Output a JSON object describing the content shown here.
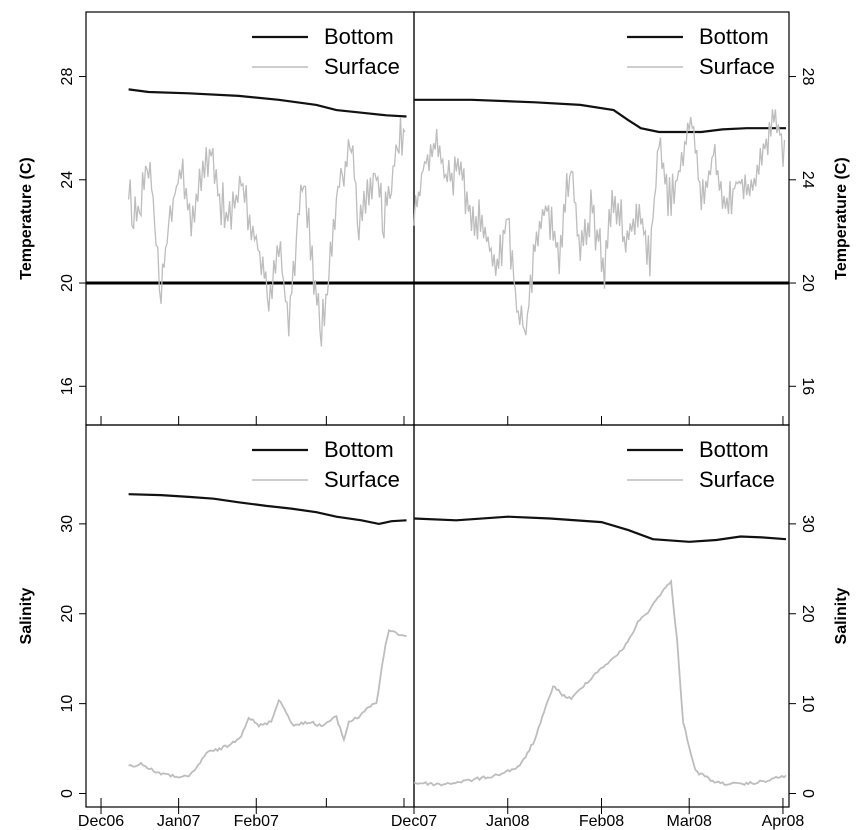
{
  "colors": {
    "bottom": "#111111",
    "surface": "#bdbdbd",
    "reference_line": "#000000"
  },
  "chart_data": [
    {
      "id": "temp-2007",
      "type": "line",
      "ylabel": "Temperature (C)",
      "yticks": [
        "16",
        "20",
        "24",
        "28"
      ],
      "ylim": [
        14.5,
        30.5
      ],
      "xlim": [
        "2006-11-25",
        "2007-04-05"
      ],
      "xticks": [],
      "reference_line": {
        "y": 20
      },
      "legend": {
        "position": "top-right",
        "entries": [
          "Bottom",
          "Surface"
        ]
      },
      "series": [
        {
          "name": "Bottom",
          "kind": "bottom",
          "points": [
            [
              "2006-12-12",
              27.5
            ],
            [
              "2006-12-20",
              27.4
            ],
            [
              "2007-01-05",
              27.35
            ],
            [
              "2007-01-25",
              27.25
            ],
            [
              "2007-02-10",
              27.1
            ],
            [
              "2007-02-25",
              26.9
            ],
            [
              "2007-03-05",
              26.7
            ],
            [
              "2007-03-15",
              26.6
            ],
            [
              "2007-03-25",
              26.5
            ],
            [
              "2007-04-02",
              26.45
            ]
          ]
        },
        {
          "name": "Surface",
          "kind": "surface",
          "noisy": true,
          "points": [
            [
              "2006-12-12",
              23.5
            ],
            [
              "2006-12-14",
              22.5
            ],
            [
              "2006-12-17",
              23.0
            ],
            [
              "2006-12-20",
              25.0
            ],
            [
              "2006-12-23",
              22.0
            ],
            [
              "2006-12-25",
              19.5
            ],
            [
              "2006-12-28",
              22.5
            ],
            [
              "2007-01-02",
              24.5
            ],
            [
              "2007-01-06",
              22.5
            ],
            [
              "2007-01-10",
              24.0
            ],
            [
              "2007-01-14",
              25.0
            ],
            [
              "2007-01-18",
              23.0
            ],
            [
              "2007-01-22",
              22.5
            ],
            [
              "2007-01-26",
              24.0
            ],
            [
              "2007-01-30",
              22.0
            ],
            [
              "2007-02-03",
              21.0
            ],
            [
              "2007-02-06",
              19.5
            ],
            [
              "2007-02-10",
              21.5
            ],
            [
              "2007-02-14",
              18.5
            ],
            [
              "2007-02-17",
              22.0
            ],
            [
              "2007-02-20",
              24.0
            ],
            [
              "2007-02-24",
              20.0
            ],
            [
              "2007-02-27",
              18.0
            ],
            [
              "2007-03-02",
              20.5
            ],
            [
              "2007-03-05",
              23.5
            ],
            [
              "2007-03-08",
              24.5
            ],
            [
              "2007-03-11",
              25.5
            ],
            [
              "2007-03-14",
              22.0
            ],
            [
              "2007-03-18",
              23.5
            ],
            [
              "2007-03-21",
              24.5
            ],
            [
              "2007-03-24",
              22.5
            ],
            [
              "2007-03-27",
              24.0
            ],
            [
              "2007-03-30",
              25.5
            ],
            [
              "2007-04-02",
              26.0
            ]
          ]
        }
      ]
    },
    {
      "id": "temp-2008",
      "type": "line",
      "ylabel": "Temperature (C)",
      "yticks": [
        "16",
        "20",
        "24",
        "28"
      ],
      "ylim": [
        14.5,
        30.5
      ],
      "xlim": [
        "2007-12-01",
        "2008-04-03"
      ],
      "xticks": [],
      "reference_line": {
        "y": 20
      },
      "legend": {
        "position": "top-right",
        "entries": [
          "Bottom",
          "Surface"
        ]
      },
      "series": [
        {
          "name": "Bottom",
          "kind": "bottom",
          "points": [
            [
              "2007-12-01",
              27.1
            ],
            [
              "2007-12-20",
              27.1
            ],
            [
              "2008-01-10",
              27.0
            ],
            [
              "2008-01-25",
              26.9
            ],
            [
              "2008-02-05",
              26.7
            ],
            [
              "2008-02-10",
              26.3
            ],
            [
              "2008-02-14",
              26.0
            ],
            [
              "2008-02-20",
              25.85
            ],
            [
              "2008-03-05",
              25.85
            ],
            [
              "2008-03-12",
              25.95
            ],
            [
              "2008-03-20",
              26.0
            ],
            [
              "2008-04-02",
              26.0
            ]
          ]
        },
        {
          "name": "Surface",
          "kind": "surface",
          "noisy": true,
          "points": [
            [
              "2007-12-01",
              22.5
            ],
            [
              "2007-12-04",
              24.5
            ],
            [
              "2007-12-08",
              25.5
            ],
            [
              "2007-12-12",
              24.0
            ],
            [
              "2007-12-16",
              24.5
            ],
            [
              "2007-12-20",
              22.5
            ],
            [
              "2007-12-24",
              22.0
            ],
            [
              "2007-12-28",
              20.5
            ],
            [
              "2008-01-01",
              22.5
            ],
            [
              "2008-01-04",
              19.0
            ],
            [
              "2008-01-07",
              18.0
            ],
            [
              "2008-01-10",
              21.5
            ],
            [
              "2008-01-14",
              23.0
            ],
            [
              "2008-01-18",
              21.0
            ],
            [
              "2008-01-22",
              24.5
            ],
            [
              "2008-01-25",
              21.0
            ],
            [
              "2008-01-29",
              23.0
            ],
            [
              "2008-02-02",
              20.5
            ],
            [
              "2008-02-05",
              23.5
            ],
            [
              "2008-02-09",
              21.5
            ],
            [
              "2008-02-13",
              23.0
            ],
            [
              "2008-02-17",
              21.0
            ],
            [
              "2008-02-20",
              25.5
            ],
            [
              "2008-02-23",
              23.0
            ],
            [
              "2008-02-27",
              24.5
            ],
            [
              "2008-03-02",
              26.5
            ],
            [
              "2008-03-05",
              23.0
            ],
            [
              "2008-03-09",
              25.0
            ],
            [
              "2008-03-13",
              23.0
            ],
            [
              "2008-03-17",
              24.0
            ],
            [
              "2008-03-21",
              23.5
            ],
            [
              "2008-03-25",
              25.0
            ],
            [
              "2008-03-29",
              26.5
            ],
            [
              "2008-04-02",
              25.0
            ]
          ]
        }
      ]
    },
    {
      "id": "sal-2007",
      "type": "line",
      "ylabel": "Salinity",
      "yticks": [
        "0",
        "10",
        "20",
        "30"
      ],
      "ylim": [
        -1.5,
        41
      ],
      "xlim": [
        "2006-11-25",
        "2007-04-05"
      ],
      "xticks": [
        [
          "2006-12-01",
          "Dec06"
        ],
        [
          "2007-01-01",
          "Jan07"
        ],
        [
          "2007-02-01",
          "Feb07"
        ],
        [
          "2007-03-01",
          ""
        ],
        [
          "2007-04-01",
          ""
        ]
      ],
      "legend": {
        "position": "top-right",
        "entries": [
          "Bottom",
          "Surface"
        ]
      },
      "series": [
        {
          "name": "Bottom",
          "kind": "bottom",
          "points": [
            [
              "2006-12-12",
              33.3
            ],
            [
              "2006-12-25",
              33.2
            ],
            [
              "2007-01-05",
              33.0
            ],
            [
              "2007-01-15",
              32.8
            ],
            [
              "2007-01-25",
              32.4
            ],
            [
              "2007-02-05",
              32.0
            ],
            [
              "2007-02-15",
              31.7
            ],
            [
              "2007-02-25",
              31.3
            ],
            [
              "2007-03-05",
              30.8
            ],
            [
              "2007-03-15",
              30.4
            ],
            [
              "2007-03-22",
              30.0
            ],
            [
              "2007-03-27",
              30.3
            ],
            [
              "2007-04-02",
              30.4
            ]
          ]
        },
        {
          "name": "Surface",
          "kind": "surface",
          "points": [
            [
              "2006-12-12",
              3.0
            ],
            [
              "2006-12-17",
              3.3
            ],
            [
              "2006-12-22",
              2.5
            ],
            [
              "2006-12-28",
              2.0
            ],
            [
              "2007-01-05",
              1.8
            ],
            [
              "2007-01-08",
              2.8
            ],
            [
              "2007-01-12",
              4.5
            ],
            [
              "2007-01-18",
              5.0
            ],
            [
              "2007-01-22",
              5.5
            ],
            [
              "2007-01-26",
              6.5
            ],
            [
              "2007-01-29",
              8.5
            ],
            [
              "2007-02-02",
              7.5
            ],
            [
              "2007-02-07",
              8.0
            ],
            [
              "2007-02-10",
              10.5
            ],
            [
              "2007-02-13",
              9.0
            ],
            [
              "2007-02-16",
              7.5
            ],
            [
              "2007-02-22",
              8.0
            ],
            [
              "2007-02-27",
              7.5
            ],
            [
              "2007-03-05",
              8.5
            ],
            [
              "2007-03-08",
              6.0
            ],
            [
              "2007-03-10",
              8.0
            ],
            [
              "2007-03-14",
              8.5
            ],
            [
              "2007-03-17",
              9.5
            ],
            [
              "2007-03-21",
              10.0
            ],
            [
              "2007-03-24",
              15.5
            ],
            [
              "2007-03-26",
              18.3
            ],
            [
              "2007-03-29",
              17.8
            ],
            [
              "2007-04-02",
              17.5
            ]
          ]
        }
      ]
    },
    {
      "id": "sal-2008",
      "type": "line",
      "ylabel": "Salinity",
      "yticks": [
        "0",
        "10",
        "20",
        "30"
      ],
      "ylim": [
        -1.5,
        41
      ],
      "xlim": [
        "2007-12-01",
        "2008-04-03"
      ],
      "xticks": [
        [
          "2007-12-01",
          "Dec07"
        ],
        [
          "2008-01-01",
          "Jan08"
        ],
        [
          "2008-02-01",
          "Feb08"
        ],
        [
          "2008-03-01",
          "Mar08"
        ],
        [
          "2008-04-01",
          "Apr08"
        ]
      ],
      "legend": {
        "position": "top-right",
        "entries": [
          "Bottom",
          "Surface"
        ]
      },
      "series": [
        {
          "name": "Bottom",
          "kind": "bottom",
          "points": [
            [
              "2007-12-01",
              30.6
            ],
            [
              "2007-12-15",
              30.4
            ],
            [
              "2008-01-01",
              30.8
            ],
            [
              "2008-01-15",
              30.6
            ],
            [
              "2008-02-01",
              30.2
            ],
            [
              "2008-02-10",
              29.3
            ],
            [
              "2008-02-18",
              28.3
            ],
            [
              "2008-03-01",
              28.0
            ],
            [
              "2008-03-10",
              28.2
            ],
            [
              "2008-03-18",
              28.6
            ],
            [
              "2008-03-25",
              28.5
            ],
            [
              "2008-04-02",
              28.3
            ]
          ]
        },
        {
          "name": "Surface",
          "kind": "surface",
          "points": [
            [
              "2007-12-01",
              1.2
            ],
            [
              "2007-12-10",
              1.0
            ],
            [
              "2007-12-20",
              1.5
            ],
            [
              "2007-12-28",
              2.0
            ],
            [
              "2008-01-05",
              3.0
            ],
            [
              "2008-01-10",
              6.0
            ],
            [
              "2008-01-13",
              9.0
            ],
            [
              "2008-01-16",
              12.0
            ],
            [
              "2008-01-19",
              11.0
            ],
            [
              "2008-01-22",
              10.5
            ],
            [
              "2008-01-26",
              12.0
            ],
            [
              "2008-02-01",
              14.0
            ],
            [
              "2008-02-05",
              15.0
            ],
            [
              "2008-02-09",
              16.5
            ],
            [
              "2008-02-13",
              19.0
            ],
            [
              "2008-02-17",
              20.5
            ],
            [
              "2008-02-21",
              22.5
            ],
            [
              "2008-02-24",
              23.5
            ],
            [
              "2008-02-26",
              17.0
            ],
            [
              "2008-02-28",
              8.0
            ],
            [
              "2008-03-03",
              2.5
            ],
            [
              "2008-03-10",
              1.2
            ],
            [
              "2008-03-18",
              1.0
            ],
            [
              "2008-03-25",
              1.3
            ],
            [
              "2008-04-02",
              2.0
            ]
          ]
        }
      ]
    }
  ]
}
